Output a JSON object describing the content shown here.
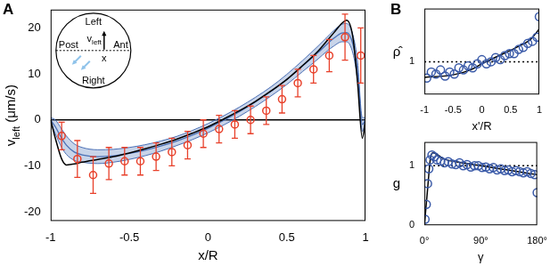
{
  "chart_data": [
    {
      "panel_label": "A",
      "type": "line",
      "x_label": "x/R",
      "y_label": {
        "text": "v",
        "subscript": "left",
        "suffix": " (μm/s)"
      },
      "xlim": [
        -1,
        1
      ],
      "ylim": [
        -22,
        24
      ],
      "xticks": [
        -1,
        -0.5,
        0,
        0.5,
        1
      ],
      "yticks": [
        -20,
        -10,
        0,
        10,
        20
      ],
      "grid": false,
      "inset": {
        "top": "Left",
        "bottom": "Right",
        "left": "Post",
        "right": "Ant",
        "arrow_label": {
          "text": "v",
          "subscript": "left"
        },
        "marker_label": "x"
      },
      "series": [
        {
          "type": "line",
          "color": "#000000",
          "line_style": "solid",
          "x": [
            -1,
            1
          ],
          "values": [
            0,
            0
          ]
        },
        {
          "type": "band",
          "color": "#4a6fb5",
          "x": [
            -1,
            -0.97,
            -0.93,
            -0.9,
            -0.85,
            -0.8,
            -0.7,
            -0.6,
            -0.5,
            -0.4,
            -0.3,
            -0.2,
            -0.1,
            0,
            0.1,
            0.2,
            0.3,
            0.4,
            0.5,
            0.6,
            0.7,
            0.75,
            0.8,
            0.85,
            0.88,
            0.92,
            0.95,
            0.98,
            1
          ],
          "values": [
            0,
            -1.5,
            -4,
            -5.5,
            -7,
            -7.6,
            -8,
            -7.8,
            -7.3,
            -6.6,
            -5.7,
            -4.6,
            -3.3,
            -1.8,
            -0.1,
            1.8,
            3.9,
            6.2,
            8.8,
            11.7,
            14.7,
            16.3,
            17.8,
            18.9,
            19,
            16.5,
            10.5,
            -1,
            0
          ],
          "upper": [
            0.5,
            0,
            -2,
            -3.5,
            -5.2,
            -6,
            -6.5,
            -6.4,
            -6,
            -5.4,
            -4.6,
            -3.6,
            -2.3,
            -0.8,
            0.9,
            2.8,
            4.9,
            7.2,
            9.9,
            12.9,
            16.1,
            17.8,
            19.5,
            20.8,
            21,
            18.5,
            12.5,
            0.5,
            0.5
          ],
          "lower": [
            -0.5,
            -3,
            -6,
            -7.5,
            -8.8,
            -9.2,
            -9.5,
            -9.2,
            -8.6,
            -7.8,
            -6.8,
            -5.6,
            -4.3,
            -2.8,
            -1.1,
            0.8,
            2.9,
            5.2,
            7.7,
            10.5,
            13.3,
            14.8,
            16.1,
            17,
            17,
            14.5,
            8.5,
            -2.5,
            -0.5
          ]
        },
        {
          "type": "line",
          "color": "#000000",
          "line_style": "solid",
          "x": [
            -1,
            -0.97,
            -0.93,
            -0.9,
            -0.85,
            -0.8,
            -0.7,
            -0.6,
            -0.5,
            -0.4,
            -0.3,
            -0.2,
            -0.1,
            0,
            0.1,
            0.2,
            0.3,
            0.4,
            0.5,
            0.6,
            0.7,
            0.75,
            0.8,
            0.85,
            0.88,
            0.92,
            0.95,
            0.98,
            1
          ],
          "values": [
            0,
            -4,
            -8.5,
            -9.8,
            -9.6,
            -9.2,
            -8.6,
            -8,
            -7.2,
            -6.3,
            -5.3,
            -4.2,
            -2.9,
            -1.5,
            0.2,
            2,
            4,
            6.3,
            8.8,
            11.8,
            15,
            17,
            19,
            21,
            21.7,
            18,
            8,
            -4,
            0
          ]
        },
        {
          "type": "scatter",
          "color": "#e8402a",
          "marker": "circle",
          "x": [
            -0.93,
            -0.83,
            -0.73,
            -0.63,
            -0.53,
            -0.43,
            -0.33,
            -0.23,
            -0.13,
            -0.03,
            0.07,
            0.17,
            0.27,
            0.37,
            0.47,
            0.57,
            0.67,
            0.77,
            0.87,
            0.97
          ],
          "values": [
            -3.5,
            -8.5,
            -12,
            -9.5,
            -9,
            -9,
            -8,
            -7,
            -5.5,
            -3,
            -2,
            -1,
            0,
            2,
            4.5,
            8,
            11,
            14,
            18,
            14
          ],
          "errors": [
            3,
            4,
            4,
            3.5,
            3,
            3,
            3,
            3,
            3,
            3,
            3,
            3,
            3,
            3,
            3,
            3,
            3,
            3.5,
            5,
            6
          ]
        }
      ]
    },
    {
      "panel_label": "B",
      "type": "line",
      "x_label": "x'/R",
      "y_label": "ρ̂",
      "xlim": [
        -1,
        1
      ],
      "ylim": [
        0.2,
        2.3
      ],
      "xticks": [
        -1,
        -0.5,
        0,
        0.5,
        1
      ],
      "yticks": [
        1
      ],
      "grid": false,
      "series": [
        {
          "type": "line",
          "color": "#000000",
          "line_style": "dotted",
          "x": [
            -1,
            1
          ],
          "values": [
            1,
            1
          ]
        },
        {
          "type": "line",
          "color": "#000000",
          "line_style": "solid",
          "x": [
            -1,
            -0.5,
            -0.2,
            0,
            0.3,
            0.6,
            0.85,
            1
          ],
          "values": [
            0.62,
            0.68,
            0.8,
            0.95,
            1.15,
            1.35,
            1.55,
            1.8
          ]
        },
        {
          "type": "scatter",
          "color": "#3a5aa8",
          "marker": "circle",
          "x": [
            -0.96,
            -0.88,
            -0.8,
            -0.72,
            -0.64,
            -0.56,
            -0.48,
            -0.4,
            -0.32,
            -0.24,
            -0.16,
            -0.08,
            0,
            0.08,
            0.16,
            0.24,
            0.32,
            0.4,
            0.48,
            0.56,
            0.64,
            0.72,
            0.8,
            0.88,
            0.96,
            1
          ],
          "values": [
            0.6,
            0.75,
            0.7,
            0.8,
            0.65,
            0.75,
            0.7,
            0.85,
            0.8,
            0.9,
            0.85,
            0.95,
            1.05,
            0.95,
            1,
            1.1,
            1.05,
            1.15,
            1.2,
            1.2,
            1.3,
            1.35,
            1.45,
            1.5,
            1.6,
            2.1
          ]
        }
      ]
    },
    {
      "type": "line",
      "x_label": "γ",
      "y_label": "g",
      "xlim": [
        0,
        180
      ],
      "ylim": [
        0,
        1.4
      ],
      "xticks": [
        {
          "value": 0,
          "label": "0°"
        },
        {
          "value": 90,
          "label": "90°"
        },
        {
          "value": 180,
          "label": "180°"
        }
      ],
      "yticks": [
        0,
        1
      ],
      "grid": false,
      "series": [
        {
          "type": "line",
          "color": "#000000",
          "line_style": "dotted",
          "x": [
            0,
            180
          ],
          "values": [
            1,
            1
          ]
        },
        {
          "type": "line",
          "color": "#000000",
          "line_style": "solid",
          "x": [
            0,
            5,
            10,
            14,
            30,
            60,
            90,
            120,
            150,
            180
          ],
          "values": [
            0,
            0.6,
            1.15,
            1.22,
            1.12,
            1.05,
            1,
            0.95,
            0.9,
            0.85
          ]
        },
        {
          "type": "scatter",
          "color": "#3a5aa8",
          "marker": "circle",
          "x": [
            1,
            3,
            5,
            7,
            9,
            12,
            16,
            20,
            26,
            32,
            38,
            44,
            50,
            56,
            62,
            68,
            74,
            80,
            86,
            92,
            98,
            104,
            110,
            116,
            122,
            128,
            134,
            140,
            146,
            152,
            158,
            164,
            170,
            176,
            180
          ],
          "values": [
            0.1,
            0.35,
            0.7,
            0.95,
            1.1,
            1.18,
            1.15,
            1.1,
            1.08,
            1.05,
            1.07,
            1.03,
            1.02,
            1.05,
            1,
            1.02,
            0.98,
            1,
            1,
            0.97,
            0.98,
            0.95,
            0.97,
            0.93,
            0.95,
            0.92,
            0.93,
            0.9,
            0.92,
            0.9,
            0.88,
            0.9,
            0.87,
            0.85,
            0.55
          ]
        }
      ]
    }
  ]
}
